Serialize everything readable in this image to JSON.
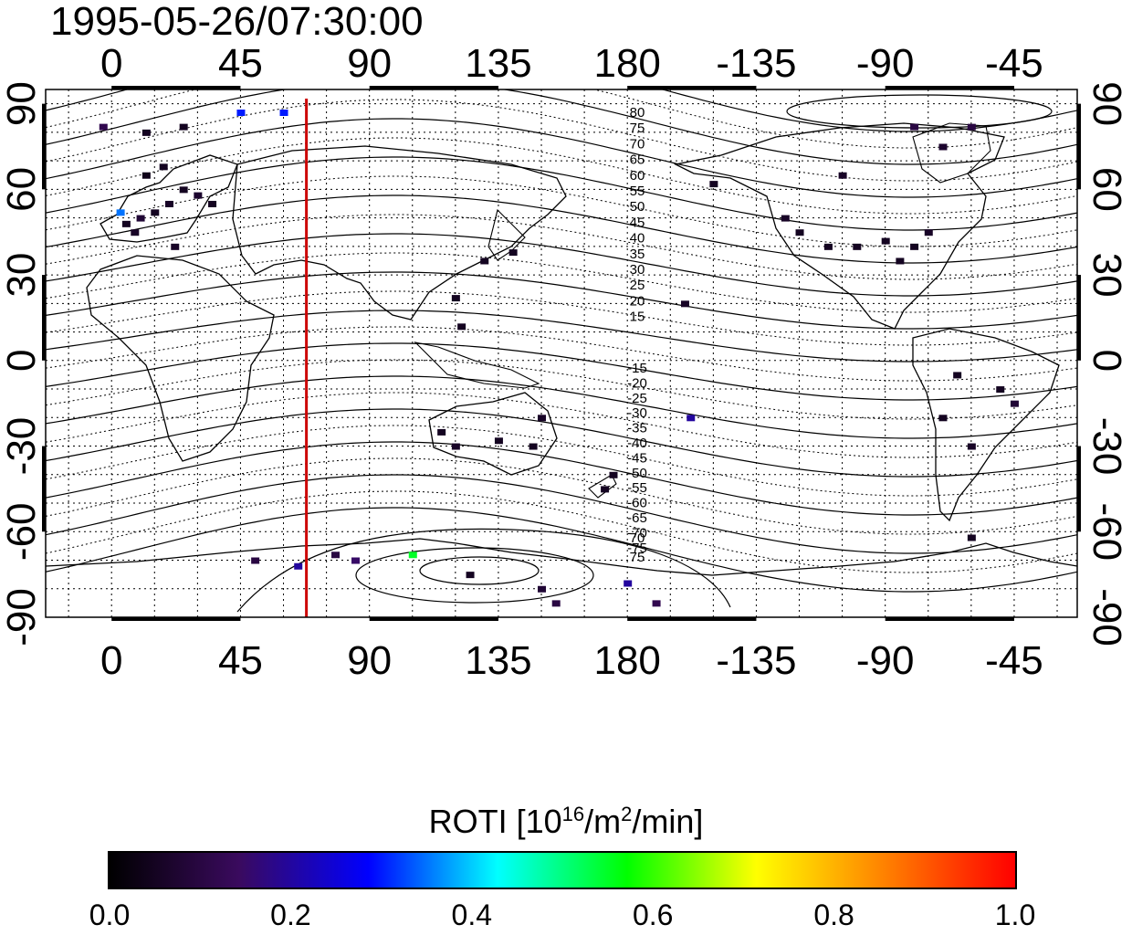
{
  "title": "1995-05-26/07:30:00",
  "map": {
    "x_tick_labels": [
      "0",
      "45",
      "90",
      "135",
      "180",
      "-135",
      "-90",
      "-45"
    ],
    "y_tick_labels": [
      "90",
      "60",
      "30",
      "0",
      "-30",
      "-60",
      "-90"
    ],
    "contour_labels_north": [
      "80",
      "75",
      "70",
      "65",
      "60",
      "55",
      "50",
      "45",
      "40",
      "35",
      "30",
      "25",
      "20",
      "15"
    ],
    "contour_labels_south": [
      "-15",
      "-20",
      "-25",
      "-30",
      "-35",
      "-40",
      "-45",
      "-50",
      "-55",
      "-60",
      "-65",
      "-70",
      "-75"
    ],
    "contour_labels_loop": [
      "70",
      "75"
    ],
    "marker_longitude": 68,
    "marker_color": "#cc0000",
    "grid": "dotted"
  },
  "chart_data": {
    "type": "heatmap",
    "value_name": "ROTI",
    "range": [
      0.0,
      1.0
    ],
    "ticks": [
      "0.0",
      "0.2",
      "0.4",
      "0.6",
      "0.8",
      "1.0"
    ],
    "colormap": [
      "#000000",
      "#3a0a5e",
      "#0000ff",
      "#00ffff",
      "#00ff00",
      "#ffff00",
      "#ff8000",
      "#ff0000"
    ],
    "cells": [
      {
        "lon": 5,
        "lat": 48,
        "v": 0.05
      },
      {
        "lon": 10,
        "lat": 50,
        "v": 0.08
      },
      {
        "lon": 15,
        "lat": 52,
        "v": 0.05
      },
      {
        "lon": 20,
        "lat": 55,
        "v": 0.06
      },
      {
        "lon": 25,
        "lat": 60,
        "v": 0.05
      },
      {
        "lon": 12,
        "lat": 65,
        "v": 0.04
      },
      {
        "lon": 18,
        "lat": 68,
        "v": 0.05
      },
      {
        "lon": 3,
        "lat": 52,
        "v": 0.35
      },
      {
        "lon": 8,
        "lat": 45,
        "v": 0.06
      },
      {
        "lon": 30,
        "lat": 58,
        "v": 0.07
      },
      {
        "lon": 35,
        "lat": 55,
        "v": 0.05
      },
      {
        "lon": 22,
        "lat": 40,
        "v": 0.06
      },
      {
        "lon": -3,
        "lat": 82,
        "v": 0.12
      },
      {
        "lon": 12,
        "lat": 80,
        "v": 0.05
      },
      {
        "lon": 25,
        "lat": 82,
        "v": 0.05
      },
      {
        "lon": 45,
        "lat": 87,
        "v": 0.3
      },
      {
        "lon": 60,
        "lat": 87,
        "v": 0.3
      },
      {
        "lon": 130,
        "lat": 35,
        "v": 0.05
      },
      {
        "lon": 140,
        "lat": 38,
        "v": 0.05
      },
      {
        "lon": 120,
        "lat": 22,
        "v": 0.05
      },
      {
        "lon": 122,
        "lat": 12,
        "v": 0.05
      },
      {
        "lon": 115,
        "lat": -25,
        "v": 0.05
      },
      {
        "lon": 120,
        "lat": -30,
        "v": 0.06
      },
      {
        "lon": 135,
        "lat": -28,
        "v": 0.05
      },
      {
        "lon": 147,
        "lat": -30,
        "v": 0.05
      },
      {
        "lon": 150,
        "lat": -20,
        "v": 0.06
      },
      {
        "lon": 175,
        "lat": -40,
        "v": 0.05
      },
      {
        "lon": 172,
        "lat": -45,
        "v": 0.05
      },
      {
        "lon": -160,
        "lat": 20,
        "v": 0.06
      },
      {
        "lon": -158,
        "lat": -20,
        "v": 0.2
      },
      {
        "lon": -120,
        "lat": 45,
        "v": 0.05
      },
      {
        "lon": -110,
        "lat": 40,
        "v": 0.05
      },
      {
        "lon": -100,
        "lat": 40,
        "v": 0.05
      },
      {
        "lon": -90,
        "lat": 42,
        "v": 0.05
      },
      {
        "lon": -80,
        "lat": 40,
        "v": 0.05
      },
      {
        "lon": -75,
        "lat": 45,
        "v": 0.06
      },
      {
        "lon": -85,
        "lat": 35,
        "v": 0.05
      },
      {
        "lon": -125,
        "lat": 50,
        "v": 0.06
      },
      {
        "lon": -150,
        "lat": 62,
        "v": 0.05
      },
      {
        "lon": -105,
        "lat": 65,
        "v": 0.06
      },
      {
        "lon": -70,
        "lat": 75,
        "v": 0.07
      },
      {
        "lon": -60,
        "lat": 82,
        "v": 0.1
      },
      {
        "lon": -80,
        "lat": 82,
        "v": 0.1
      },
      {
        "lon": -65,
        "lat": -5,
        "v": 0.05
      },
      {
        "lon": -50,
        "lat": -10,
        "v": 0.05
      },
      {
        "lon": -70,
        "lat": -20,
        "v": 0.05
      },
      {
        "lon": -60,
        "lat": -30,
        "v": 0.06
      },
      {
        "lon": -45,
        "lat": -15,
        "v": 0.08
      },
      {
        "lon": -60,
        "lat": -62,
        "v": 0.05
      },
      {
        "lon": 50,
        "lat": -70,
        "v": 0.1
      },
      {
        "lon": 65,
        "lat": -72,
        "v": 0.2
      },
      {
        "lon": 78,
        "lat": -68,
        "v": 0.1
      },
      {
        "lon": 85,
        "lat": -70,
        "v": 0.15
      },
      {
        "lon": 105,
        "lat": -68,
        "v": 0.55
      },
      {
        "lon": 125,
        "lat": -75,
        "v": 0.05
      },
      {
        "lon": 150,
        "lat": -80,
        "v": 0.08
      },
      {
        "lon": 180,
        "lat": -78,
        "v": 0.2
      },
      {
        "lon": -170,
        "lat": -85,
        "v": 0.12
      },
      {
        "lon": 155,
        "lat": -85,
        "v": 0.1
      }
    ]
  },
  "colorbar": {
    "title_text": "ROTI  [10",
    "title_sup1": "16",
    "title_mid": "/m",
    "title_sup2": "2",
    "title_end": "/min]",
    "ticks": [
      "0.0",
      "0.2",
      "0.4",
      "0.6",
      "0.8",
      "1.0"
    ]
  }
}
